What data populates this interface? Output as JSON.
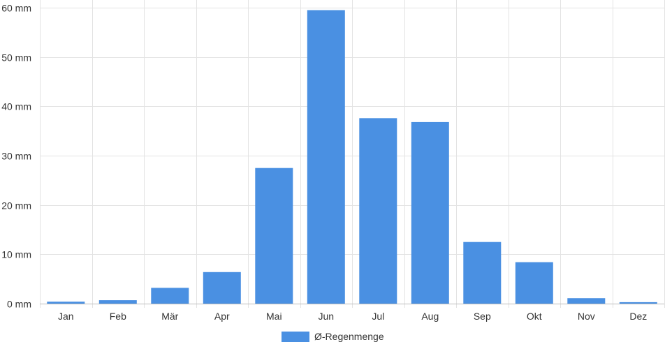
{
  "chart_data": {
    "type": "bar",
    "categories": [
      "Jan",
      "Feb",
      "Mär",
      "Apr",
      "Mai",
      "Jun",
      "Jul",
      "Aug",
      "Sep",
      "Okt",
      "Nov",
      "Dez"
    ],
    "series": [
      {
        "name": "Ø-Regenmenge",
        "values": [
          0.4,
          0.7,
          3.2,
          6.4,
          27.5,
          59.5,
          37.6,
          36.8,
          12.5,
          8.4,
          1.1,
          0.3
        ],
        "color": "#4a90e2"
      }
    ],
    "y_ticks": [
      "0 mm",
      "10 mm",
      "20 mm",
      "30 mm",
      "40 mm",
      "50 mm",
      "60 mm"
    ],
    "ylim": [
      0,
      60
    ],
    "grid": true,
    "legend_position": "bottom-center",
    "title": "",
    "xlabel": "",
    "ylabel": ""
  }
}
